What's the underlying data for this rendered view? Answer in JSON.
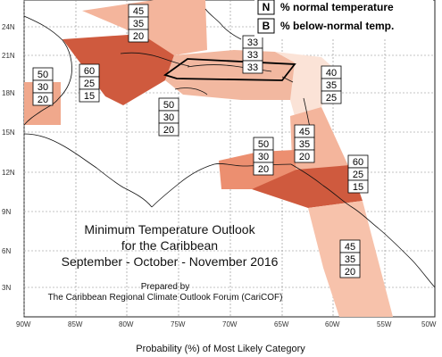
{
  "legend": [
    {
      "letter": "N",
      "text": "% normal temperature"
    },
    {
      "letter": "B",
      "text": "% below-normal temp."
    }
  ],
  "title_lines": [
    "Minimum Temperature Outlook",
    "for the Caribbean",
    "September - October - November 2016"
  ],
  "credit_lines": [
    "Prepared by",
    "The Caribbean Regional Climate Outlook Forum (CariCOF)"
  ],
  "caption": "Probability (%) of Most Likely Category",
  "lat_labels": [
    "24N",
    "21N",
    "18N",
    "15N",
    "12N",
    "9N",
    "6N",
    "3N"
  ],
  "lon_labels": [
    "90W",
    "85W",
    "80W",
    "75W",
    "70W",
    "65W",
    "60W",
    "55W",
    "50W"
  ],
  "colors": {
    "light": "#f7c9b5",
    "medium": "#ec9d7e",
    "dark": "#cf5a3e",
    "palest": "#fbe3d7"
  },
  "boxes": [
    {
      "id": "bahamas",
      "values": [
        "45",
        "35",
        "20"
      ]
    },
    {
      "id": "greater-antilles",
      "values": [
        "33",
        "33",
        "33"
      ]
    },
    {
      "id": "belize",
      "values": [
        "50",
        "30",
        "20"
      ]
    },
    {
      "id": "cayman-jamaica",
      "values": [
        "60",
        "25",
        "15"
      ]
    },
    {
      "id": "central-caribbean",
      "values": [
        "50",
        "30",
        "20"
      ]
    },
    {
      "id": "northern-lesser-antilles",
      "values": [
        "40",
        "35",
        "25"
      ]
    },
    {
      "id": "eastern-caribbean",
      "values": [
        "45",
        "35",
        "20"
      ]
    },
    {
      "id": "abc-islands",
      "values": [
        "50",
        "30",
        "20"
      ]
    },
    {
      "id": "trinidad-tobago",
      "values": [
        "60",
        "25",
        "15"
      ]
    },
    {
      "id": "guianas",
      "values": [
        "45",
        "35",
        "20"
      ]
    }
  ]
}
